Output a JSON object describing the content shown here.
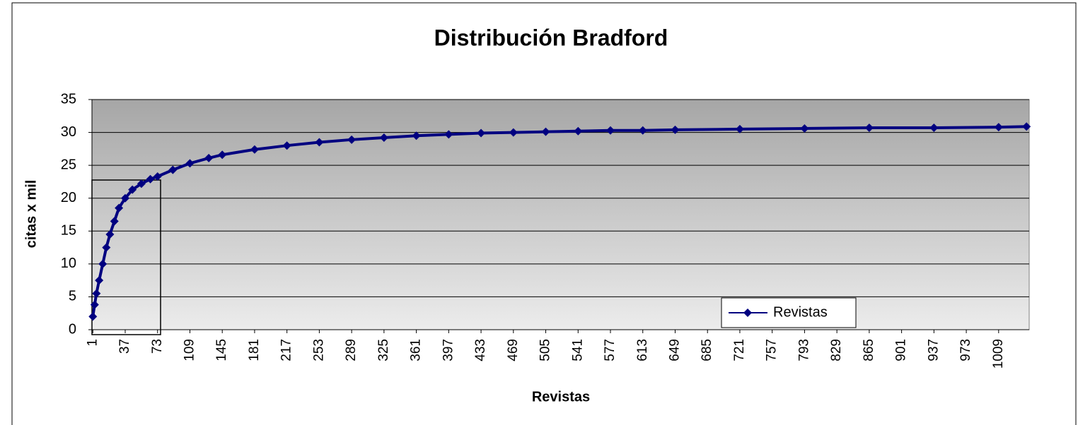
{
  "chart_data": {
    "type": "line",
    "title": "Distribución Bradford",
    "x_label": "Revistas",
    "y_label": "citas x mil",
    "x": [
      1,
      3,
      5,
      8,
      12,
      16,
      20,
      25,
      30,
      37,
      45,
      55,
      65,
      73,
      90,
      109,
      130,
      145,
      181,
      217,
      253,
      289,
      325,
      361,
      397,
      433,
      469,
      505,
      541,
      577,
      613,
      649,
      721,
      793,
      865,
      937,
      1009,
      1040
    ],
    "series": [
      {
        "name": "Revistas",
        "color": "#000080",
        "values": [
          2,
          3.8,
          5.5,
          7.5,
          10,
          12.5,
          14.5,
          16.5,
          18.5,
          20,
          21.3,
          22.2,
          22.9,
          23.3,
          24.3,
          25.3,
          26.1,
          26.6,
          27.4,
          28,
          28.5,
          28.9,
          29.2,
          29.5,
          29.7,
          29.9,
          30,
          30.1,
          30.2,
          30.3,
          30.3,
          30.4,
          30.5,
          30.6,
          30.7,
          30.7,
          30.8,
          30.9
        ]
      }
    ],
    "xlim": [
      0,
      1043
    ],
    "xticks": [
      1,
      37,
      73,
      109,
      145,
      181,
      217,
      253,
      289,
      325,
      361,
      397,
      433,
      469,
      505,
      541,
      577,
      613,
      649,
      685,
      721,
      757,
      793,
      829,
      865,
      901,
      937,
      973,
      1009
    ],
    "ylim": [
      0,
      35
    ],
    "yticks": [
      0,
      5,
      10,
      15,
      20,
      25,
      30,
      35
    ],
    "grid": true,
    "legend": "lower right"
  }
}
